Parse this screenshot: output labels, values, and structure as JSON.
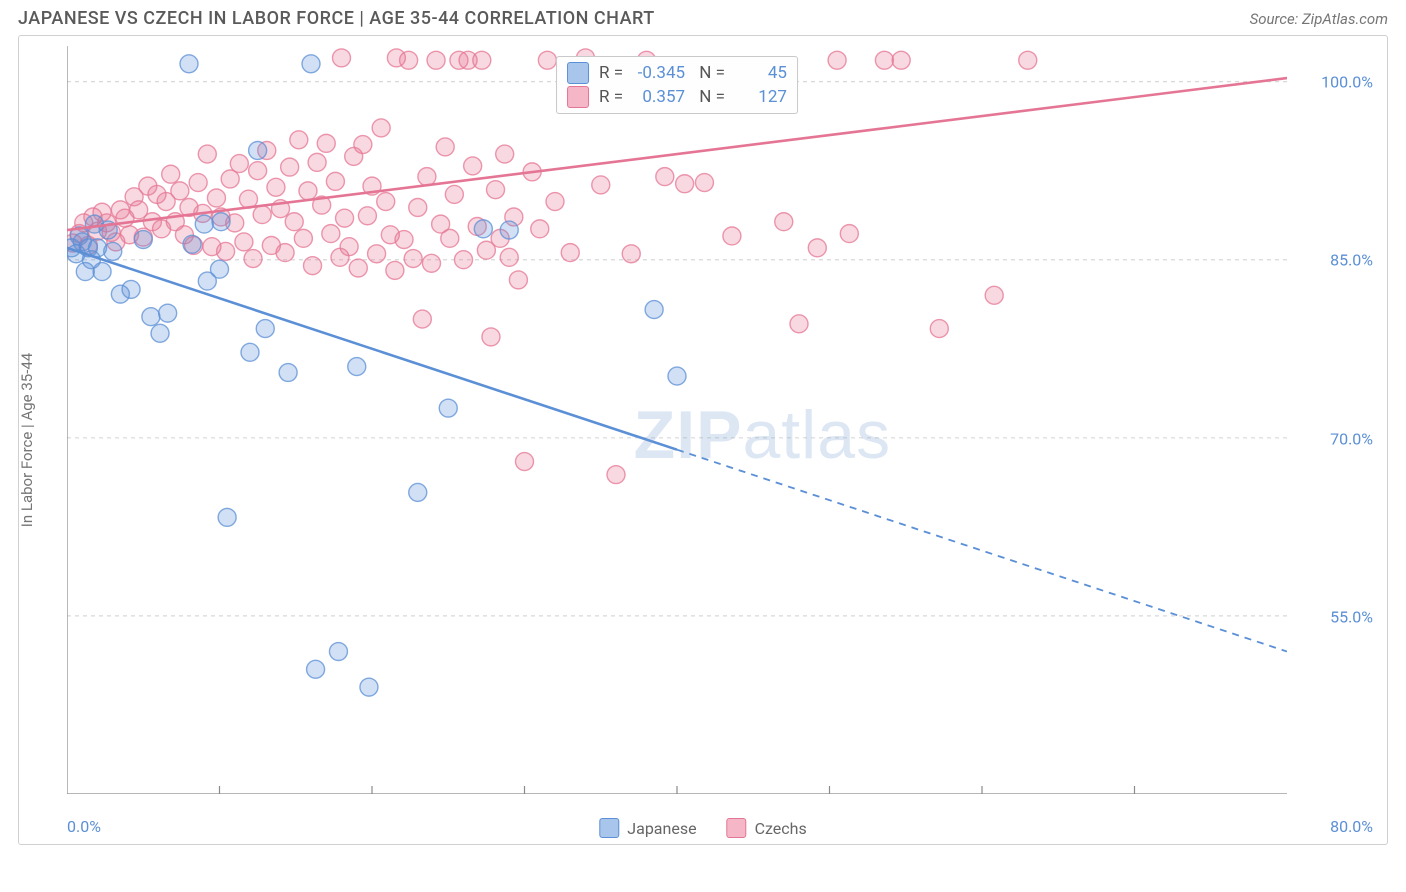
{
  "title": "JAPANESE VS CZECH IN LABOR FORCE | AGE 35-44 CORRELATION CHART",
  "source": "Source: ZipAtlas.com",
  "watermark_main": "ZIP",
  "watermark_sub": "atlas",
  "chart": {
    "type": "scatter",
    "ylabel": "In Labor Force | Age 35-44",
    "xlim": [
      0,
      80
    ],
    "ylim": [
      40,
      103
    ],
    "ytick_labels": [
      "55.0%",
      "70.0%",
      "85.0%",
      "100.0%"
    ],
    "ytick_values": [
      55,
      70,
      85,
      100
    ],
    "xtick_values": [
      10,
      20,
      30,
      40,
      50,
      60,
      70
    ],
    "xtick_left": "0.0%",
    "xtick_right": "80.0%",
    "grid_color": "#d8d8d8",
    "axis_color": "#8a8a8a",
    "background_color": "#ffffff",
    "marker_radius": 9,
    "marker_fill_opacity": 0.28,
    "marker_stroke_opacity": 0.75,
    "marker_stroke_width": 1.4,
    "line_width": 2.6,
    "series": [
      {
        "name": "Japanese",
        "color": "#5b8fd6",
        "fill": "#a8c6ec",
        "R": "-0.345",
        "N": "45",
        "trend_solid": {
          "x1": 0,
          "y1": 86,
          "x2": 40,
          "y2": 69
        },
        "trend_dashed": {
          "x1": 40,
          "y1": 69,
          "x2": 80,
          "y2": 52
        },
        "points": [
          [
            0.3,
            86
          ],
          [
            0.6,
            85.5
          ],
          [
            0.8,
            87
          ],
          [
            1,
            86.5
          ],
          [
            1.2,
            84
          ],
          [
            1.4,
            86
          ],
          [
            1.6,
            85
          ],
          [
            1.8,
            88
          ],
          [
            2,
            86
          ],
          [
            2.3,
            84
          ],
          [
            2.7,
            87.5
          ],
          [
            3,
            85.7
          ],
          [
            3.5,
            82.1
          ],
          [
            4.2,
            82.5
          ],
          [
            5,
            86.7
          ],
          [
            5.5,
            80.2
          ],
          [
            6.1,
            78.8
          ],
          [
            6.6,
            80.5
          ],
          [
            8,
            101.5
          ],
          [
            8.2,
            86.3
          ],
          [
            9,
            88
          ],
          [
            9.2,
            83.2
          ],
          [
            10,
            84.2
          ],
          [
            10.1,
            88.2
          ],
          [
            10.5,
            63.3
          ],
          [
            12,
            77.2
          ],
          [
            12.5,
            94.2
          ],
          [
            13,
            79.2
          ],
          [
            14.5,
            75.5
          ],
          [
            16,
            101.5
          ],
          [
            16.3,
            50.5
          ],
          [
            17.8,
            52.0
          ],
          [
            19,
            76.0
          ],
          [
            19.8,
            49.0
          ],
          [
            23,
            65.4
          ],
          [
            25,
            72.5
          ],
          [
            27.3,
            87.6
          ],
          [
            29,
            87.5
          ],
          [
            38.5,
            80.8
          ],
          [
            40,
            75.2
          ]
        ]
      },
      {
        "name": "Czechs",
        "color": "#e57594",
        "fill": "#f5b7c8",
        "R": "0.357",
        "N": "127",
        "trend_solid": {
          "x1": 0,
          "y1": 87.5,
          "x2": 80,
          "y2": 100.3
        },
        "trend_dashed": null,
        "points": [
          [
            0.4,
            86.4
          ],
          [
            0.8,
            87.2
          ],
          [
            1.1,
            88.1
          ],
          [
            1.4,
            86.2
          ],
          [
            1.7,
            88.6
          ],
          [
            2,
            87.4
          ],
          [
            2.3,
            89
          ],
          [
            2.6,
            88.1
          ],
          [
            2.9,
            87.3
          ],
          [
            3.2,
            86.5
          ],
          [
            3.5,
            89.2
          ],
          [
            3.8,
            88.5
          ],
          [
            4.1,
            87.1
          ],
          [
            4.4,
            90.3
          ],
          [
            4.7,
            89.2
          ],
          [
            5,
            86.9
          ],
          [
            5.3,
            91.2
          ],
          [
            5.6,
            88.2
          ],
          [
            5.9,
            90.5
          ],
          [
            6.2,
            87.6
          ],
          [
            6.5,
            89.9
          ],
          [
            6.8,
            92.2
          ],
          [
            7.1,
            88.2
          ],
          [
            7.4,
            90.8
          ],
          [
            7.7,
            87.1
          ],
          [
            8,
            89.4
          ],
          [
            8.3,
            86.2
          ],
          [
            8.6,
            91.5
          ],
          [
            8.9,
            88.9
          ],
          [
            9.2,
            93.9
          ],
          [
            9.5,
            86.1
          ],
          [
            9.8,
            90.2
          ],
          [
            10.1,
            88.6
          ],
          [
            10.4,
            85.7
          ],
          [
            10.7,
            91.8
          ],
          [
            11,
            88.1
          ],
          [
            11.3,
            93.1
          ],
          [
            11.6,
            86.5
          ],
          [
            11.9,
            90.1
          ],
          [
            12.2,
            85.1
          ],
          [
            12.5,
            92.5
          ],
          [
            12.8,
            88.8
          ],
          [
            13.1,
            94.2
          ],
          [
            13.4,
            86.2
          ],
          [
            13.7,
            91.1
          ],
          [
            14,
            89.3
          ],
          [
            14.3,
            85.6
          ],
          [
            14.6,
            92.8
          ],
          [
            14.9,
            88.2
          ],
          [
            15.2,
            95.1
          ],
          [
            15.5,
            86.8
          ],
          [
            15.8,
            90.8
          ],
          [
            16.1,
            84.5
          ],
          [
            16.4,
            93.2
          ],
          [
            16.7,
            89.6
          ],
          [
            17,
            94.8
          ],
          [
            17.3,
            87.2
          ],
          [
            17.6,
            91.6
          ],
          [
            17.9,
            85.2
          ],
          [
            18,
            102
          ],
          [
            18.2,
            88.5
          ],
          [
            18.5,
            86.1
          ],
          [
            18.8,
            93.7
          ],
          [
            19.1,
            84.3
          ],
          [
            19.4,
            94.7
          ],
          [
            19.7,
            88.7
          ],
          [
            20,
            91.2
          ],
          [
            20.3,
            85.5
          ],
          [
            20.6,
            96.1
          ],
          [
            20.9,
            89.9
          ],
          [
            21.2,
            87.1
          ],
          [
            21.5,
            84.1
          ],
          [
            21.6,
            102
          ],
          [
            22.1,
            86.7
          ],
          [
            22.4,
            101.8
          ],
          [
            22.7,
            85.1
          ],
          [
            23,
            89.4
          ],
          [
            23.3,
            80.0
          ],
          [
            23.6,
            92.0
          ],
          [
            23.9,
            84.7
          ],
          [
            24.2,
            101.8
          ],
          [
            24.5,
            88.0
          ],
          [
            24.8,
            94.5
          ],
          [
            25.1,
            86.8
          ],
          [
            25.4,
            90.5
          ],
          [
            25.7,
            101.8
          ],
          [
            26,
            85.0
          ],
          [
            26.3,
            101.8
          ],
          [
            26.6,
            92.9
          ],
          [
            26.9,
            87.8
          ],
          [
            27.2,
            101.8
          ],
          [
            27.5,
            85.8
          ],
          [
            27.8,
            78.5
          ],
          [
            28.1,
            90.9
          ],
          [
            28.4,
            86.8
          ],
          [
            28.7,
            93.9
          ],
          [
            29,
            85.2
          ],
          [
            29.3,
            88.6
          ],
          [
            29.6,
            83.3
          ],
          [
            30,
            68.0
          ],
          [
            30.5,
            92.4
          ],
          [
            31,
            87.6
          ],
          [
            31.5,
            101.8
          ],
          [
            32,
            89.9
          ],
          [
            33,
            85.6
          ],
          [
            34,
            102
          ],
          [
            35,
            91.3
          ],
          [
            36,
            66.9
          ],
          [
            37,
            85.5
          ],
          [
            38,
            101.8
          ],
          [
            39.2,
            92.0
          ],
          [
            40.5,
            91.4
          ],
          [
            41.8,
            91.5
          ],
          [
            43.6,
            87.0
          ],
          [
            47.0,
            88.2
          ],
          [
            48.0,
            79.6
          ],
          [
            49.2,
            86.0
          ],
          [
            50.5,
            101.8
          ],
          [
            51.3,
            87.2
          ],
          [
            53.6,
            101.8
          ],
          [
            54.7,
            101.8
          ],
          [
            57.2,
            79.2
          ],
          [
            60.8,
            82.0
          ],
          [
            63.0,
            101.8
          ]
        ]
      }
    ]
  },
  "legend": {
    "item1": "Japanese",
    "item2": "Czechs"
  }
}
